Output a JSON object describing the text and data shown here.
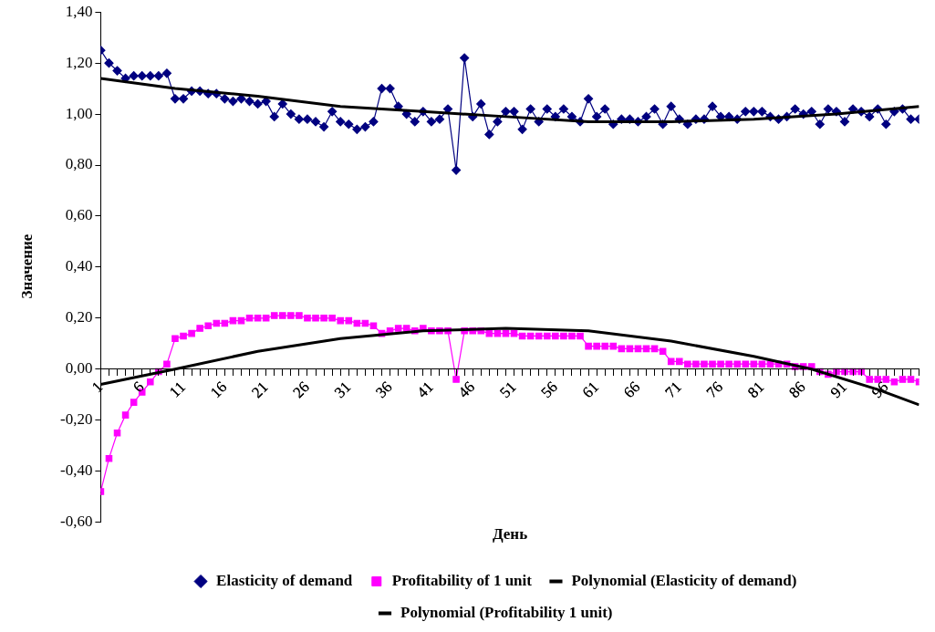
{
  "chart_data": {
    "type": "line",
    "xlabel": "День",
    "ylabel": "Значение",
    "legend": "bottom",
    "grid": false,
    "xlim": [
      1,
      100
    ],
    "xticks": [
      1,
      {
        "value": 2,
        "label": null
      },
      {
        "value": 3,
        "label": null
      },
      {
        "value": 4,
        "label": null
      },
      {
        "value": 5,
        "label": null
      },
      6,
      {
        "value": 7,
        "label": null
      },
      {
        "value": 8,
        "label": null
      },
      {
        "value": 9,
        "label": null
      },
      {
        "value": 10,
        "label": null
      },
      11,
      {
        "value": 12,
        "label": null
      },
      {
        "value": 13,
        "label": null
      },
      {
        "value": 14,
        "label": null
      },
      {
        "value": 15,
        "label": null
      },
      16,
      {
        "value": 17,
        "label": null
      },
      {
        "value": 18,
        "label": null
      },
      {
        "value": 19,
        "label": null
      },
      {
        "value": 20,
        "label": null
      },
      21,
      {
        "value": 22,
        "label": null
      },
      {
        "value": 23,
        "label": null
      },
      {
        "value": 24,
        "label": null
      },
      {
        "value": 25,
        "label": null
      },
      26,
      {
        "value": 27,
        "label": null
      },
      {
        "value": 28,
        "label": null
      },
      {
        "value": 29,
        "label": null
      },
      {
        "value": 30,
        "label": null
      },
      31,
      {
        "value": 32,
        "label": null
      },
      {
        "value": 33,
        "label": null
      },
      {
        "value": 34,
        "label": null
      },
      {
        "value": 35,
        "label": null
      },
      36,
      {
        "value": 37,
        "label": null
      },
      {
        "value": 38,
        "label": null
      },
      {
        "value": 39,
        "label": null
      },
      {
        "value": 40,
        "label": null
      },
      41,
      {
        "value": 42,
        "label": null
      },
      {
        "value": 43,
        "label": null
      },
      {
        "value": 44,
        "label": null
      },
      {
        "value": 45,
        "label": null
      },
      46,
      {
        "value": 47,
        "label": null
      },
      {
        "value": 48,
        "label": null
      },
      {
        "value": 49,
        "label": null
      },
      {
        "value": 50,
        "label": null
      },
      51,
      {
        "value": 52,
        "label": null
      },
      {
        "value": 53,
        "label": null
      },
      {
        "value": 54,
        "label": null
      },
      {
        "value": 55,
        "label": null
      },
      56,
      {
        "value": 57,
        "label": null
      },
      {
        "value": 58,
        "label": null
      },
      {
        "value": 59,
        "label": null
      },
      {
        "value": 60,
        "label": null
      },
      61,
      {
        "value": 62,
        "label": null
      },
      {
        "value": 63,
        "label": null
      },
      {
        "value": 64,
        "label": null
      },
      {
        "value": 65,
        "label": null
      },
      66,
      {
        "value": 67,
        "label": null
      },
      {
        "value": 68,
        "label": null
      },
      {
        "value": 69,
        "label": null
      },
      {
        "value": 70,
        "label": null
      },
      71,
      {
        "value": 72,
        "label": null
      },
      {
        "value": 73,
        "label": null
      },
      {
        "value": 74,
        "label": null
      },
      {
        "value": 75,
        "label": null
      },
      76,
      {
        "value": 77,
        "label": null
      },
      {
        "value": 78,
        "label": null
      },
      {
        "value": 79,
        "label": null
      },
      {
        "value": 80,
        "label": null
      },
      81,
      {
        "value": 82,
        "label": null
      },
      {
        "value": 83,
        "label": null
      },
      {
        "value": 84,
        "label": null
      },
      {
        "value": 85,
        "label": null
      },
      86,
      {
        "value": 87,
        "label": null
      },
      {
        "value": 88,
        "label": null
      },
      {
        "value": 89,
        "label": null
      },
      {
        "value": 90,
        "label": null
      },
      91,
      {
        "value": 92,
        "label": null
      },
      {
        "value": 93,
        "label": null
      },
      {
        "value": 94,
        "label": null
      },
      {
        "value": 95,
        "label": null
      },
      96,
      {
        "value": 97,
        "label": null
      },
      {
        "value": 98,
        "label": null
      },
      {
        "value": 99,
        "label": null
      },
      {
        "value": 100,
        "label": null
      }
    ],
    "ylim": [
      -0.6,
      1.4
    ],
    "yticks": [
      {
        "value": -0.6,
        "label": "-0,60"
      },
      {
        "value": -0.4,
        "label": "-0,40"
      },
      {
        "value": -0.2,
        "label": "-0,20"
      },
      {
        "value": 0,
        "label": "0,00"
      },
      {
        "value": 0.2,
        "label": "0,20"
      },
      {
        "value": 0.4,
        "label": "0,40"
      },
      {
        "value": 0.6,
        "label": "0,60"
      },
      {
        "value": 0.8,
        "label": "0,80"
      },
      {
        "value": 1,
        "label": "1,00"
      },
      {
        "value": 1.2,
        "label": "1,20"
      },
      {
        "value": 1.4,
        "label": "1,40"
      }
    ],
    "series": [
      {
        "name": "Elasticity of demand",
        "color": "#000080",
        "marker": "diamond",
        "x": [
          1,
          2,
          3,
          4,
          5,
          6,
          7,
          8,
          9,
          10,
          11,
          12,
          13,
          14,
          15,
          16,
          17,
          18,
          19,
          20,
          21,
          22,
          23,
          24,
          25,
          26,
          27,
          28,
          29,
          30,
          31,
          32,
          33,
          34,
          35,
          36,
          37,
          38,
          39,
          40,
          41,
          42,
          43,
          44,
          45,
          46,
          47,
          48,
          49,
          50,
          51,
          52,
          53,
          54,
          55,
          56,
          57,
          58,
          59,
          60,
          61,
          62,
          63,
          64,
          65,
          66,
          67,
          68,
          69,
          70,
          71,
          72,
          73,
          74,
          75,
          76,
          77,
          78,
          79,
          80,
          81,
          82,
          83,
          84,
          85,
          86,
          87,
          88,
          89,
          90,
          91,
          92,
          93,
          94,
          95,
          96,
          97,
          98,
          99,
          100
        ],
        "values": [
          1.25,
          1.2,
          1.17,
          1.14,
          1.15,
          1.15,
          1.15,
          1.15,
          1.16,
          1.06,
          1.06,
          1.09,
          1.09,
          1.08,
          1.08,
          1.06,
          1.05,
          1.06,
          1.05,
          1.04,
          1.05,
          0.99,
          1.04,
          1.0,
          0.98,
          0.98,
          0.97,
          0.95,
          1.01,
          0.97,
          0.96,
          0.94,
          0.95,
          0.97,
          1.1,
          1.1,
          1.03,
          1.0,
          0.97,
          1.01,
          0.97,
          0.98,
          1.02,
          0.78,
          1.22,
          0.99,
          1.04,
          0.92,
          0.97,
          1.01,
          1.01,
          0.94,
          1.02,
          0.97,
          1.02,
          0.99,
          1.02,
          0.99,
          0.97,
          1.06,
          0.99,
          1.02,
          0.96,
          0.98,
          0.98,
          0.97,
          0.99,
          1.02,
          0.96,
          1.03,
          0.98,
          0.96,
          0.98,
          0.98,
          1.03,
          0.99,
          0.99,
          0.98,
          1.01,
          1.01,
          1.01,
          0.99,
          0.98,
          0.99,
          1.02,
          1.0,
          1.01,
          0.96,
          1.02,
          1.01,
          0.97,
          1.02,
          1.01,
          0.99,
          1.02,
          0.96,
          1.01,
          1.02,
          0.98,
          0.98
        ]
      },
      {
        "name": "Profitability of 1 unit",
        "color": "#ff00ff",
        "marker": "square",
        "x": [
          1,
          2,
          3,
          4,
          5,
          6,
          7,
          8,
          9,
          10,
          11,
          12,
          13,
          14,
          15,
          16,
          17,
          18,
          19,
          20,
          21,
          22,
          23,
          24,
          25,
          26,
          27,
          28,
          29,
          30,
          31,
          32,
          33,
          34,
          35,
          36,
          37,
          38,
          39,
          40,
          41,
          42,
          43,
          44,
          45,
          46,
          47,
          48,
          49,
          50,
          51,
          52,
          53,
          54,
          55,
          56,
          57,
          58,
          59,
          60,
          61,
          62,
          63,
          64,
          65,
          66,
          67,
          68,
          69,
          70,
          71,
          72,
          73,
          74,
          75,
          76,
          77,
          78,
          79,
          80,
          81,
          82,
          83,
          84,
          85,
          86,
          87,
          88,
          89,
          90,
          91,
          92,
          93,
          94,
          95,
          96,
          97,
          98,
          99,
          100
        ],
        "values": [
          -0.48,
          -0.35,
          -0.25,
          -0.18,
          -0.13,
          -0.09,
          -0.05,
          -0.01,
          0.02,
          0.12,
          0.13,
          0.14,
          0.16,
          0.17,
          0.18,
          0.18,
          0.19,
          0.19,
          0.2,
          0.2,
          0.2,
          0.21,
          0.21,
          0.21,
          0.21,
          0.2,
          0.2,
          0.2,
          0.2,
          0.19,
          0.19,
          0.18,
          0.18,
          0.17,
          0.14,
          0.15,
          0.16,
          0.16,
          0.15,
          0.16,
          0.15,
          0.15,
          0.15,
          -0.04,
          0.15,
          0.15,
          0.15,
          0.14,
          0.14,
          0.14,
          0.14,
          0.13,
          0.13,
          0.13,
          0.13,
          0.13,
          0.13,
          0.13,
          0.13,
          0.09,
          0.09,
          0.09,
          0.09,
          0.08,
          0.08,
          0.08,
          0.08,
          0.08,
          0.07,
          0.03,
          0.03,
          0.02,
          0.02,
          0.02,
          0.02,
          0.02,
          0.02,
          0.02,
          0.02,
          0.02,
          0.02,
          0.02,
          0.02,
          0.02,
          0.01,
          0.01,
          0.01,
          -0.01,
          -0.02,
          -0.01,
          -0.01,
          -0.01,
          -0.01,
          -0.04,
          -0.04,
          -0.04,
          -0.05,
          -0.04,
          -0.04,
          -0.05
        ]
      },
      {
        "name": "Polynomial (Elasticity of demand)",
        "color": "#000000",
        "marker": "none",
        "x": [
          1,
          10,
          20,
          30,
          40,
          50,
          60,
          70,
          80,
          90,
          100
        ],
        "values": [
          1.14,
          1.1,
          1.07,
          1.03,
          1.01,
          0.99,
          0.97,
          0.97,
          0.98,
          1.0,
          1.03
        ]
      },
      {
        "name": "Polynomial (Profitability 1 unit)",
        "color": "#000000",
        "marker": "none",
        "x": [
          1,
          10,
          20,
          30,
          40,
          50,
          60,
          70,
          80,
          87,
          95,
          100
        ],
        "values": [
          -0.06,
          0.0,
          0.07,
          0.12,
          0.15,
          0.16,
          0.15,
          0.11,
          0.05,
          0.0,
          -0.08,
          -0.14
        ]
      }
    ]
  }
}
